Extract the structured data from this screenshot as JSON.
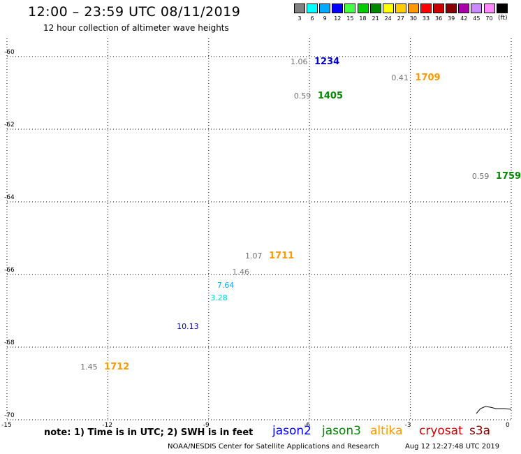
{
  "header": {
    "title": "12:00 – 23:59 UTC 08/11/2019",
    "subtitle": "12 hour collection of altimeter wave heights"
  },
  "legend": {
    "unit": "(ft)",
    "swatches": [
      {
        "label": "3",
        "color": "#808080"
      },
      {
        "label": "6",
        "color": "#00ffff"
      },
      {
        "label": "9",
        "color": "#00aaff"
      },
      {
        "label": "12",
        "color": "#0000ff"
      },
      {
        "label": "15",
        "color": "#44ff44"
      },
      {
        "label": "18",
        "color": "#00cc00"
      },
      {
        "label": "21",
        "color": "#008800"
      },
      {
        "label": "24",
        "color": "#ffff00"
      },
      {
        "label": "27",
        "color": "#ffcc00"
      },
      {
        "label": "30",
        "color": "#ff9900"
      },
      {
        "label": "33",
        "color": "#ff0000"
      },
      {
        "label": "36",
        "color": "#cc0000"
      },
      {
        "label": "39",
        "color": "#880000"
      },
      {
        "label": "42",
        "color": "#aa00aa"
      },
      {
        "label": "45",
        "color": "#cc88ff"
      },
      {
        "label": "70",
        "color": "#ff88ff"
      },
      {
        "label": "",
        "color": "#000000"
      }
    ]
  },
  "map": {
    "lon_range": [
      -15,
      0
    ],
    "lat_range": [
      -70,
      -59.5
    ],
    "lat_ticks": [
      -60,
      -62,
      -64,
      -66,
      -68,
      -70
    ],
    "lon_ticks": [
      -15,
      -12,
      -9,
      -6,
      -3,
      0
    ],
    "tick_labels": {
      "lat": [
        "-60",
        "-62",
        "-64",
        "-66",
        "-68",
        "-70"
      ],
      "lon": [
        "-15",
        "-12",
        "-9",
        "-6",
        "-3",
        "0"
      ]
    },
    "gridline_style": "dotted"
  },
  "observations": [
    {
      "lon": -5.9,
      "lat": -60.15,
      "value": "1.06",
      "value_color": "#707070",
      "time": "1234",
      "time_color": "#0000cc"
    },
    {
      "lon": -2.9,
      "lat": -60.6,
      "value": "0.41",
      "value_color": "#707070",
      "time": "1709",
      "time_color": "#ff9900"
    },
    {
      "lon": -5.8,
      "lat": -61.1,
      "value": "0.59",
      "value_color": "#707070",
      "time": "1405",
      "time_color": "#008800"
    },
    {
      "lon": -0.5,
      "lat": -63.3,
      "value": "0.59",
      "value_color": "#707070",
      "time": "1759",
      "time_color": "#008800"
    },
    {
      "lon": -7.25,
      "lat": -65.5,
      "value": "1.07",
      "value_color": "#707070",
      "time": "1711",
      "time_color": "#ff9900"
    },
    {
      "lon": -12.15,
      "lat": -68.55,
      "value": "1.45",
      "value_color": "#707070",
      "time": "1712",
      "time_color": "#ff9900"
    }
  ],
  "track_points": [
    {
      "lon": -8.05,
      "lat": -65.95,
      "value": "1.46",
      "color": "#808080"
    },
    {
      "lon": -8.5,
      "lat": -66.3,
      "value": "7.64",
      "color": "#00aaff"
    },
    {
      "lon": -8.7,
      "lat": -66.65,
      "value": "3.28",
      "color": "#00cccc"
    },
    {
      "lon": -9.7,
      "lat": -67.45,
      "value": "10.13",
      "color": "#000099"
    }
  ],
  "footer": {
    "note": "note: 1) Time is in UTC; 2) SWH is in feet",
    "satellites": [
      {
        "name": "jason2",
        "color": "#0000ff"
      },
      {
        "name": "jason3",
        "color": "#008800"
      },
      {
        "name": "altika",
        "color": "#ff9900"
      },
      {
        "name": "cryosat",
        "color": "#cc0000"
      },
      {
        "name": "s3a",
        "color": "#880000"
      }
    ],
    "credit": "NOAA/NESDIS Center for Satellite Applications and Research",
    "timestamp": "Aug 12 12:27:48 UTC 2019"
  }
}
